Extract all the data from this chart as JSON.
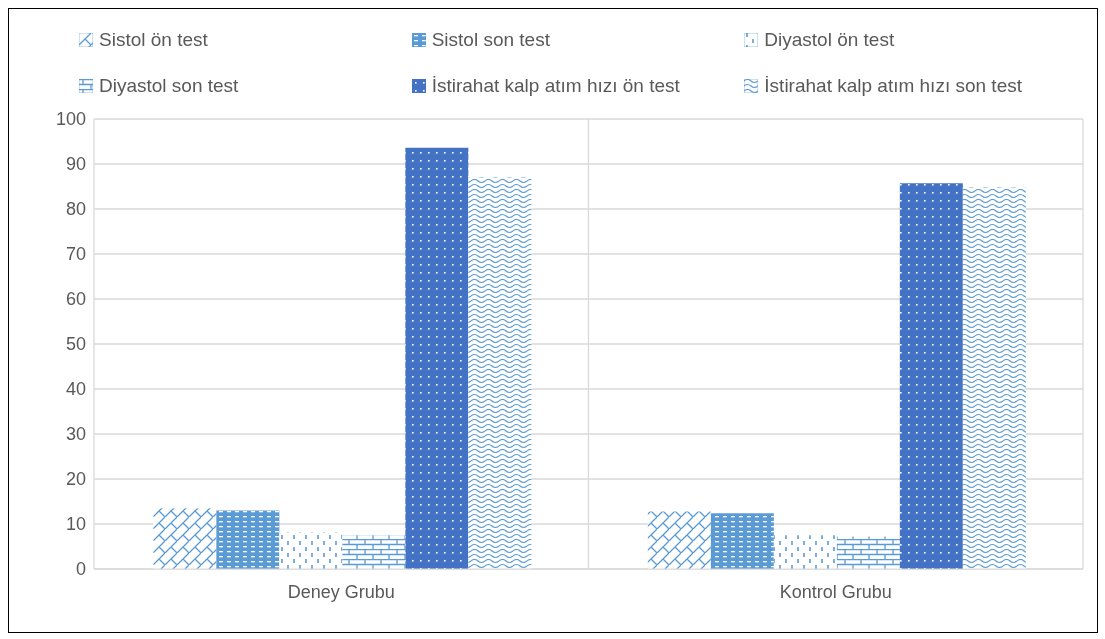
{
  "chart_data": {
    "type": "bar",
    "categories": [
      "Deney Grubu",
      "Kontrol Grubu"
    ],
    "series": [
      {
        "name": "Sistol ön test",
        "color": "#5b9bd5",
        "values": [
          13.5,
          12.8
        ]
      },
      {
        "name": "Sistol son test",
        "color": "#5b9bd5",
        "values": [
          13.0,
          12.4
        ]
      },
      {
        "name": "Diyastol ön test",
        "color": "#5b9bd5",
        "values": [
          8.1,
          7.5
        ]
      },
      {
        "name": "Diyastol son test",
        "color": "#5b9bd5",
        "values": [
          7.5,
          7.2
        ]
      },
      {
        "name": "İstirahat kalp atım hızı ön test",
        "color": "#4472c4",
        "values": [
          93.6,
          85.7
        ]
      },
      {
        "name": "İstirahat kalp atım hızı son test",
        "color": "#5b9bd5",
        "values": [
          87.0,
          84.8
        ]
      }
    ],
    "ylim": [
      0,
      100
    ],
    "yticks": [
      0,
      10,
      20,
      30,
      40,
      50,
      60,
      70,
      80,
      90,
      100
    ],
    "grid": true,
    "legend": "top"
  }
}
